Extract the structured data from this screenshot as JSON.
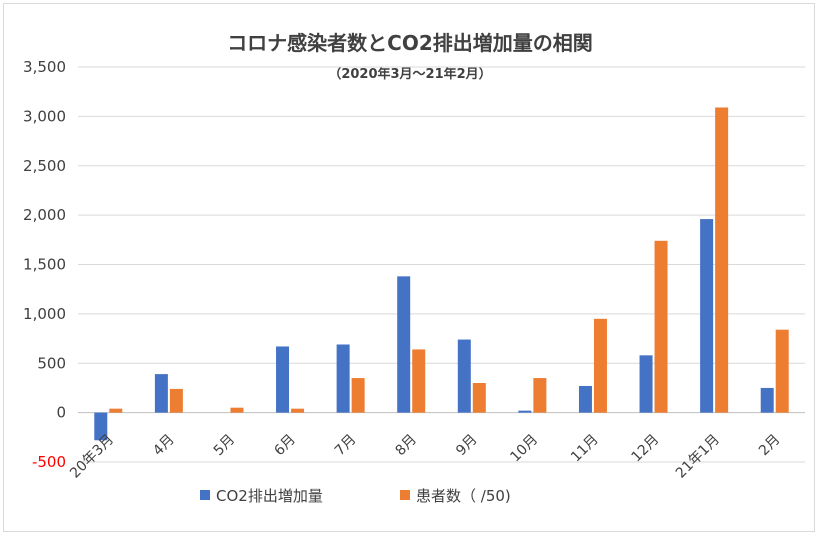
{
  "chart_data": {
    "type": "bar",
    "title": "コロナ感染者数とCO2排出増加量の相関",
    "subtitle": "（2020年3月～21年2月）",
    "categories": [
      "20年3月",
      "4月",
      "5月",
      "6月",
      "7月",
      "8月",
      "9月",
      "10月",
      "11月",
      "12月",
      "21年1月",
      "2月"
    ],
    "series": [
      {
        "name": "CO2排出増加量",
        "color": "#4472c4",
        "values": [
          -280,
          390,
          0,
          670,
          690,
          1380,
          740,
          20,
          270,
          580,
          1960,
          250
        ]
      },
      {
        "name": "患者数（ /50)",
        "color": "#ed7d31",
        "values": [
          40,
          240,
          50,
          40,
          350,
          640,
          300,
          350,
          950,
          1740,
          3090,
          840
        ]
      }
    ],
    "ylim": [
      -500,
      3500
    ],
    "yticks": [
      {
        "value": -500,
        "label": "-500",
        "color": "#ff0000"
      },
      {
        "value": 0,
        "label": "0",
        "color": "#404040"
      },
      {
        "value": 500,
        "label": "500",
        "color": "#404040"
      },
      {
        "value": 1000,
        "label": "1,000",
        "color": "#404040"
      },
      {
        "value": 1500,
        "label": "1,500",
        "color": "#404040"
      },
      {
        "value": 2000,
        "label": "2,000",
        "color": "#404040"
      },
      {
        "value": 2500,
        "label": "2,500",
        "color": "#404040"
      },
      {
        "value": 3000,
        "label": "3,000",
        "color": "#404040"
      },
      {
        "value": 3500,
        "label": "3,500",
        "color": "#404040"
      }
    ],
    "grid": true,
    "legend": "bottom"
  }
}
